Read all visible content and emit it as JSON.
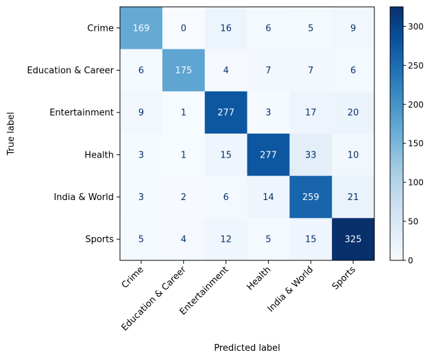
{
  "chart_data": {
    "type": "heatmap",
    "title": "",
    "xlabel": "Predicted label",
    "ylabel": "True label",
    "x_categories": [
      "Crime",
      "Education & Career",
      "Entertainment",
      "Health",
      "India & World",
      "Sports"
    ],
    "y_categories": [
      "Crime",
      "Education & Career",
      "Entertainment",
      "Health",
      "India & World",
      "Sports"
    ],
    "values": [
      [
        169,
        0,
        16,
        6,
        5,
        9
      ],
      [
        6,
        175,
        4,
        7,
        7,
        6
      ],
      [
        9,
        1,
        277,
        3,
        17,
        20
      ],
      [
        3,
        1,
        15,
        277,
        33,
        10
      ],
      [
        3,
        2,
        6,
        14,
        259,
        21
      ],
      [
        5,
        4,
        12,
        5,
        15,
        325
      ]
    ],
    "colormap": "Blues",
    "color_range": [
      0,
      325
    ],
    "colorbar_ticks": [
      0,
      50,
      100,
      150,
      200,
      250,
      300
    ],
    "colors": {
      "low": "#f7fbff",
      "high": "#08306b",
      "dark_text": "#08306b",
      "light_text": "#f7fbff"
    }
  }
}
